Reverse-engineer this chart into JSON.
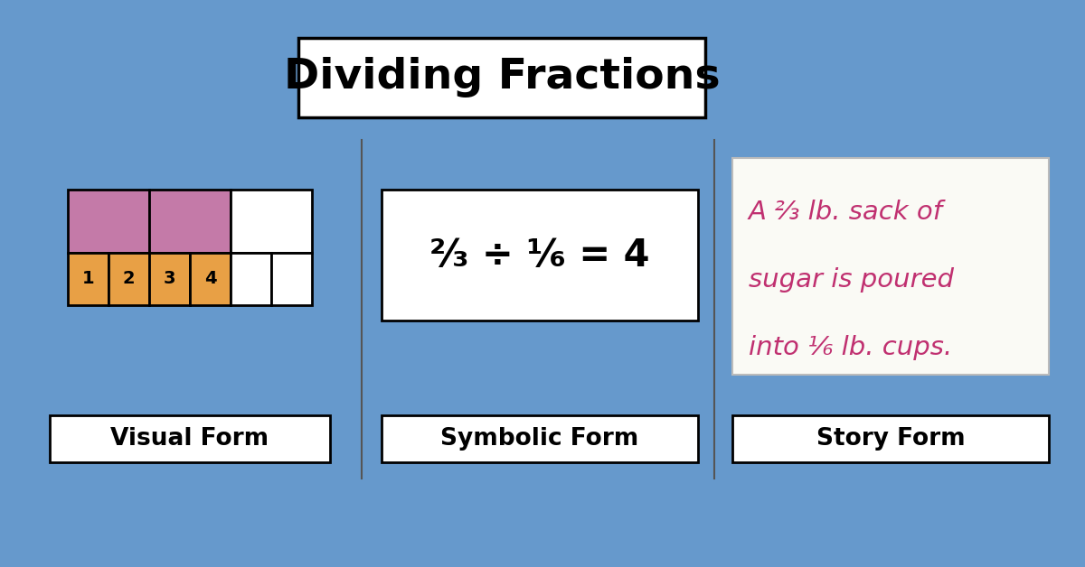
{
  "background_color": "#6699cc",
  "title": "Dividing Fractions",
  "title_fontsize": 34,
  "title_box_color": "white",
  "title_box_edge": "black",
  "divider_color": "#555555",
  "visual_label": "Visual Form",
  "symbolic_label": "Symbolic Form",
  "story_label": "Story Form",
  "label_fontsize": 19,
  "label_box_color": "white",
  "label_box_edge": "black",
  "pink_color": "#c47aa8",
  "orange_color": "#e8a045",
  "symbolic_text": "²⁄₃ ÷ ¹⁄₆ = 4",
  "story_lines": [
    "A ⅔ lb. sack of",
    "sugar is poured",
    "into ⅙ lb. cups."
  ],
  "story_color": "#c03070",
  "story_box_color": "#fafaf5"
}
